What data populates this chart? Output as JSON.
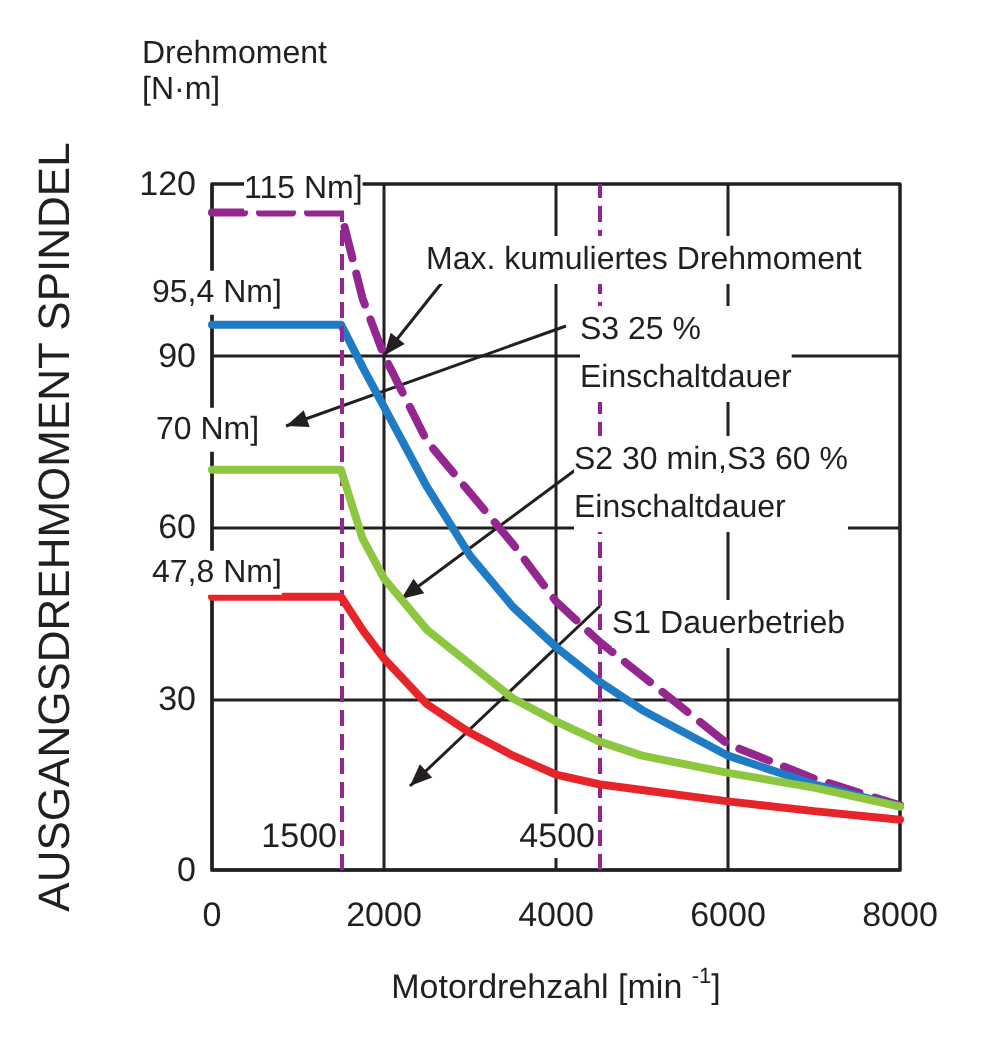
{
  "chart_data": {
    "type": "line",
    "title": "Drehmoment",
    "subtitle": "[N·m]",
    "ylabel": "AUSGANGSDREHMOMENT SPINDEL",
    "xlabel": "Motordrehzahl [min $^{-1}$]",
    "xlim": [
      0,
      8000
    ],
    "xticks": [
      0,
      2000,
      4000,
      6000,
      8000
    ],
    "ylim": [
      0,
      120
    ],
    "yticks": [
      0,
      30,
      60,
      90,
      120
    ],
    "grid": true,
    "marker": "none",
    "series": [
      {
        "color": "#93278f",
        "line_style": "dashed",
        "x": [
          0,
          1500,
          1750,
          2000,
          2500,
          3000,
          3500,
          4000,
          4500,
          5000,
          6000,
          7000,
          8000
        ],
        "values": [
          115,
          115,
          100,
          90,
          75,
          66,
          57,
          47,
          40,
          34,
          22,
          16,
          11.3
        ]
      },
      {
        "color": "#1e7bc4",
        "line_style": "solid",
        "x": [
          0,
          1500,
          1750,
          2000,
          2500,
          3000,
          3500,
          4000,
          4500,
          5000,
          6000,
          7000,
          8000
        ],
        "values": [
          95.4,
          95.4,
          88,
          81,
          67,
          55,
          46,
          39,
          33,
          28,
          20,
          15,
          11.1
        ]
      },
      {
        "color": "#8dc63f",
        "line_style": "solid",
        "x": [
          0,
          1500,
          1750,
          2000,
          2500,
          3000,
          3500,
          4000,
          4500,
          5000,
          6000,
          7000,
          8000
        ],
        "values": [
          70,
          70,
          58,
          51,
          42,
          36,
          30,
          26,
          22.5,
          20,
          17,
          14.4,
          11.1
        ]
      },
      {
        "color": "#e8242b",
        "line_style": "solid",
        "x": [
          0,
          1500,
          1750,
          2000,
          2500,
          3000,
          3500,
          4000,
          4500,
          5000,
          6000,
          7000,
          8000
        ],
        "values": [
          47.8,
          47.8,
          42,
          37,
          29,
          24,
          20,
          16.7,
          15,
          14,
          12,
          10.3,
          8.8
        ]
      }
    ],
    "ref_lines": [
      {
        "axis": "x",
        "value": 1500,
        "label": "1500",
        "color": "#93278f",
        "line_style": "dashed"
      },
      {
        "axis": "x",
        "value": 4500,
        "label": "4500",
        "color": "#93278f",
        "line_style": "dashed"
      }
    ],
    "annotations": [
      {
        "text": "115 Nm]",
        "x": 0,
        "y": 115
      },
      {
        "text": "95,4 Nm]",
        "x": 0,
        "y": 95.4
      },
      {
        "text": "70 Nm]",
        "x": 0,
        "y": 70
      },
      {
        "text": "47,8 Nm]",
        "x": 0,
        "y": 47.8
      },
      {
        "text": "Max. kumuliertes Drehmoment",
        "x": 2000,
        "y": 90
      },
      "S3 25 %\nEinschaltdauer",
      {
        "text": "S2 30 min,S3 60 %\nEinschaltdauer",
        "x": 2200,
        "y": 47.4
      },
      "S1 Dauerbetrieb"
    ]
  }
}
